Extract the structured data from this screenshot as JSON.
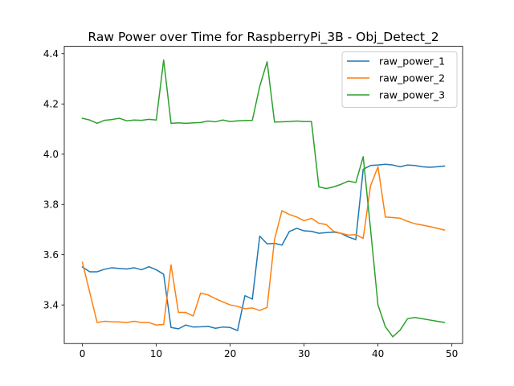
{
  "chart_data": {
    "type": "line",
    "title": "Raw Power over Time for RaspberryPi_3B - Obj_Detect_2",
    "xlabel": "",
    "ylabel": "",
    "xlim": [
      -2.45,
      51.45
    ],
    "ylim": [
      3.2463,
      4.4294
    ],
    "xticks": [
      0,
      10,
      20,
      30,
      40,
      50
    ],
    "yticks": [
      3.4,
      3.6,
      3.8,
      4.0,
      4.2,
      4.4
    ],
    "ytick_labels": [
      "3.4",
      "3.6",
      "3.8",
      "4.0",
      "4.2",
      "4.4"
    ],
    "grid": false,
    "legend_position": "top-right",
    "x": [
      0,
      1,
      2,
      3,
      4,
      5,
      6,
      7,
      8,
      9,
      10,
      11,
      12,
      13,
      14,
      15,
      16,
      17,
      18,
      19,
      20,
      21,
      22,
      23,
      24,
      25,
      26,
      27,
      28,
      29,
      30,
      31,
      32,
      33,
      34,
      35,
      36,
      37,
      38,
      39,
      40,
      41,
      42,
      43,
      44,
      45,
      46,
      47,
      48,
      49
    ],
    "series": [
      {
        "name": "raw_power_1",
        "color": "#1f77b4",
        "values": [
          3.551,
          3.532,
          3.532,
          3.542,
          3.548,
          3.545,
          3.543,
          3.548,
          3.54,
          3.552,
          3.54,
          3.522,
          3.31,
          3.305,
          3.32,
          3.312,
          3.313,
          3.315,
          3.307,
          3.312,
          3.31,
          3.298,
          3.437,
          3.423,
          3.674,
          3.643,
          3.645,
          3.638,
          3.692,
          3.705,
          3.695,
          3.693,
          3.685,
          3.688,
          3.69,
          3.685,
          3.67,
          3.66,
          3.94,
          3.955,
          3.957,
          3.96,
          3.957,
          3.95,
          3.957,
          3.955,
          3.95,
          3.948,
          3.95,
          3.953
        ]
      },
      {
        "name": "raw_power_2",
        "color": "#ff7f0e",
        "values": [
          3.57,
          3.45,
          3.33,
          3.335,
          3.333,
          3.332,
          3.33,
          3.335,
          3.33,
          3.33,
          3.32,
          3.322,
          3.56,
          3.37,
          3.37,
          3.356,
          3.447,
          3.44,
          3.425,
          3.412,
          3.4,
          3.394,
          3.385,
          3.388,
          3.378,
          3.39,
          3.66,
          3.775,
          3.76,
          3.75,
          3.735,
          3.745,
          3.725,
          3.72,
          3.693,
          3.685,
          3.678,
          3.68,
          3.665,
          3.875,
          3.95,
          3.75,
          3.748,
          3.745,
          3.733,
          3.723,
          3.718,
          3.712,
          3.705,
          3.698
        ]
      },
      {
        "name": "raw_power_3",
        "color": "#2ca02c",
        "values": [
          4.143,
          4.136,
          4.123,
          4.135,
          4.138,
          4.143,
          4.133,
          4.136,
          4.135,
          4.139,
          4.136,
          4.375,
          4.123,
          4.125,
          4.123,
          4.125,
          4.126,
          4.132,
          4.129,
          4.136,
          4.13,
          4.133,
          4.134,
          4.135,
          4.27,
          4.368,
          4.128,
          4.129,
          4.13,
          4.132,
          4.13,
          4.13,
          3.87,
          3.863,
          3.87,
          3.88,
          3.893,
          3.887,
          3.99,
          3.7,
          3.4,
          3.313,
          3.273,
          3.3,
          3.345,
          3.35,
          3.345,
          3.34,
          3.335,
          3.33
        ]
      }
    ]
  }
}
